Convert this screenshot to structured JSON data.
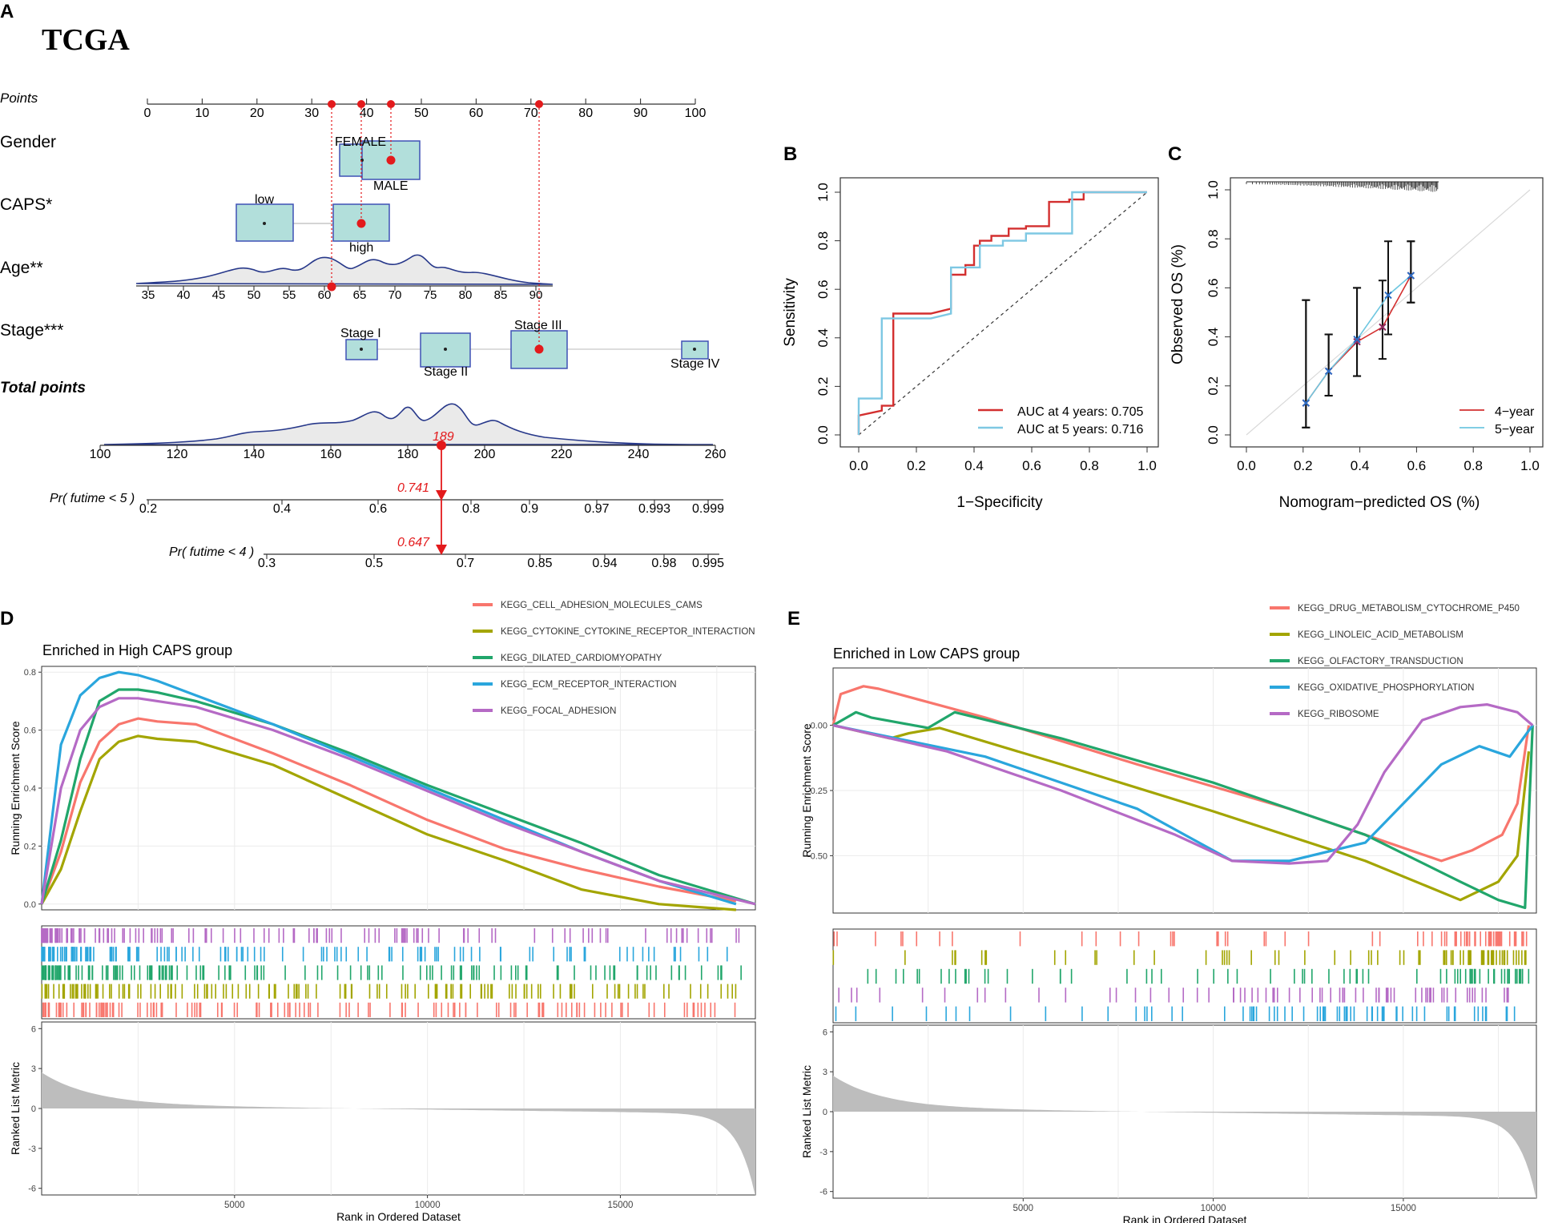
{
  "panels": {
    "A": "A",
    "B": "B",
    "C": "C",
    "D": "D",
    "E": "E"
  },
  "colors": {
    "red": "#e31a1c",
    "teal_box": "#b2dfdb",
    "box_border": "#3f51b5",
    "navy": "#27388a",
    "roc_red": "#d32f2f",
    "roc_blue": "#7ec8e3",
    "cal_red": "#d32f2f",
    "cal_blue": "#6fc7e0",
    "gsea": [
      "#f8766d",
      "#a3a500",
      "#21a66b",
      "#2aa6dd",
      "#b56ac5"
    ]
  },
  "nomogram": {
    "title": "TCGA",
    "points_label": "Points",
    "points_ticks": [
      "0",
      "10",
      "20",
      "30",
      "40",
      "50",
      "60",
      "70",
      "80",
      "90",
      "100"
    ],
    "gender": {
      "label": "Gender",
      "levels": [
        "FEMALE",
        "MALE"
      ]
    },
    "caps": {
      "label": "CAPS*",
      "levels": [
        "low",
        "high"
      ]
    },
    "age": {
      "label": "Age**",
      "ticks": [
        "35",
        "40",
        "45",
        "50",
        "55",
        "60",
        "65",
        "70",
        "75",
        "80",
        "85",
        "90"
      ]
    },
    "stage": {
      "label": "Stage***",
      "levels": [
        "Stage I",
        "Stage II",
        "Stage III",
        "Stage IV"
      ]
    },
    "total": {
      "label": "Total points",
      "ticks": [
        "100",
        "120",
        "140",
        "160",
        "180",
        "200",
        "220",
        "240",
        "260"
      ],
      "marker": "189"
    },
    "pr5": {
      "label": "Pr( futime < 5 )",
      "ticks": [
        "0.2",
        "0.4",
        "0.6",
        "0.8",
        "0.9",
        "0.97",
        "0.993",
        "0.999"
      ],
      "value": "0.741"
    },
    "pr4": {
      "label": "Pr( futime < 4 )",
      "ticks": [
        "0.3",
        "0.5",
        "0.7",
        "0.85",
        "0.94",
        "0.98",
        "0.995"
      ],
      "value": "0.647"
    }
  },
  "chart_data": [
    {
      "id": "B",
      "type": "line",
      "title": "",
      "xlabel": "1−Specificity",
      "ylabel": "Sensitivity",
      "xlim": [
        0,
        1
      ],
      "ylim": [
        0,
        1
      ],
      "xticks": [
        "0.0",
        "0.2",
        "0.4",
        "0.6",
        "0.8",
        "1.0"
      ],
      "yticks": [
        "0.0",
        "0.2",
        "0.4",
        "0.6",
        "0.8",
        "1.0"
      ],
      "legend": [
        "AUC at 4 years: 0.705",
        "AUC at 5 years: 0.716"
      ],
      "series": [
        {
          "name": "AUC at 4 years: 0.705",
          "x": [
            0,
            0,
            0.08,
            0.08,
            0.12,
            0.12,
            0.25,
            0.25,
            0.32,
            0.32,
            0.37,
            0.37,
            0.4,
            0.4,
            0.42,
            0.42,
            0.46,
            0.46,
            0.52,
            0.52,
            0.58,
            0.58,
            0.66,
            0.66,
            0.73,
            0.73,
            0.78,
            0.78,
            1
          ],
          "y": [
            0,
            0.08,
            0.1,
            0.12,
            0.12,
            0.5,
            0.5,
            0.5,
            0.52,
            0.66,
            0.66,
            0.7,
            0.7,
            0.78,
            0.78,
            0.8,
            0.8,
            0.82,
            0.82,
            0.85,
            0.85,
            0.86,
            0.86,
            0.96,
            0.96,
            0.97,
            0.97,
            1,
            1
          ]
        },
        {
          "name": "AUC at 5 years: 0.716",
          "x": [
            0,
            0,
            0.08,
            0.08,
            0.25,
            0.25,
            0.32,
            0.32,
            0.42,
            0.42,
            0.5,
            0.5,
            0.58,
            0.58,
            0.74,
            0.74,
            1
          ],
          "y": [
            0,
            0.15,
            0.15,
            0.48,
            0.48,
            0.48,
            0.5,
            0.69,
            0.69,
            0.78,
            0.78,
            0.8,
            0.8,
            0.83,
            0.83,
            1,
            1
          ]
        }
      ]
    },
    {
      "id": "C",
      "type": "line",
      "title": "",
      "xlabel": "Nomogram−predicted OS (%)",
      "ylabel": "Observed OS (%)",
      "xlim": [
        0,
        1
      ],
      "ylim": [
        0,
        1
      ],
      "xticks": [
        "0.0",
        "0.2",
        "0.4",
        "0.6",
        "0.8",
        "1.0"
      ],
      "yticks": [
        "0.0",
        "0.2",
        "0.4",
        "0.6",
        "0.8",
        "1.0"
      ],
      "legend": [
        "4−year",
        "5−year"
      ],
      "series": [
        {
          "name": "4−year",
          "x": [
            0.21,
            0.29,
            0.39,
            0.48,
            0.58
          ],
          "y": [
            0.13,
            0.26,
            0.38,
            0.44,
            0.65
          ],
          "ci": [
            [
              0.03,
              0.55
            ],
            [
              0.16,
              0.41
            ],
            [
              0.24,
              0.6
            ],
            [
              0.31,
              0.63
            ],
            [
              0.54,
              0.79
            ]
          ]
        },
        {
          "name": "5−year",
          "x": [
            0.21,
            0.29,
            0.39,
            0.5,
            0.58
          ],
          "y": [
            0.13,
            0.26,
            0.39,
            0.57,
            0.65
          ],
          "ci": [
            [
              0.03,
              0.55
            ],
            [
              0.16,
              0.41
            ],
            [
              0.24,
              0.6
            ],
            [
              0.41,
              0.79
            ],
            [
              0.54,
              0.79
            ]
          ]
        }
      ]
    },
    {
      "id": "D",
      "type": "line",
      "title": "Enriched in High CAPS group",
      "xlabel": "Rank in Ordered Dataset",
      "ylabel": "Running Enrichment Score",
      "ylabel2": "Ranked List Metric",
      "xlim": [
        0,
        18500
      ],
      "ylim": [
        -0.02,
        0.82
      ],
      "ylim2": [
        -6.5,
        6.5
      ],
      "xticks": [
        "5000",
        "10000",
        "15000"
      ],
      "yticks": [
        "0.0",
        "0.2",
        "0.4",
        "0.6",
        "0.8"
      ],
      "yticks2": [
        "-6",
        "-3",
        "0",
        "3",
        "6"
      ],
      "series": [
        {
          "name": "KEGG_CELL_ADHESION_MOLECULES_CAMS",
          "x": [
            0,
            500,
            1000,
            1500,
            2000,
            2500,
            3000,
            4000,
            6000,
            8000,
            10000,
            12000,
            14000,
            16000,
            18000
          ],
          "y": [
            0,
            0.18,
            0.42,
            0.56,
            0.62,
            0.64,
            0.63,
            0.62,
            0.52,
            0.41,
            0.29,
            0.19,
            0.12,
            0.06,
            0.01
          ]
        },
        {
          "name": "KEGG_CYTOKINE_CYTOKINE_RECEPTOR_INTERACTION",
          "x": [
            0,
            500,
            1000,
            1500,
            2000,
            2500,
            3000,
            4000,
            6000,
            8000,
            10000,
            12000,
            14000,
            16000,
            18000
          ],
          "y": [
            0,
            0.12,
            0.32,
            0.5,
            0.56,
            0.58,
            0.57,
            0.56,
            0.48,
            0.36,
            0.24,
            0.15,
            0.05,
            0.0,
            -0.02
          ]
        },
        {
          "name": "KEGG_DILATED_CARDIOMYOPATHY",
          "x": [
            0,
            500,
            1000,
            1500,
            2000,
            2500,
            3000,
            4000,
            6000,
            8000,
            10000,
            12000,
            14000,
            16000,
            18500
          ],
          "y": [
            0,
            0.22,
            0.5,
            0.7,
            0.74,
            0.74,
            0.73,
            0.7,
            0.62,
            0.52,
            0.41,
            0.31,
            0.21,
            0.1,
            0.0
          ]
        },
        {
          "name": "KEGG_ECM_RECEPTOR_INTERACTION",
          "x": [
            0,
            500,
            1000,
            1500,
            2000,
            2500,
            3000,
            4000,
            6000,
            8000,
            10000,
            12000,
            14000,
            16000,
            18000
          ],
          "y": [
            0,
            0.55,
            0.72,
            0.78,
            0.8,
            0.79,
            0.77,
            0.72,
            0.62,
            0.51,
            0.4,
            0.29,
            0.18,
            0.08,
            0.0
          ]
        },
        {
          "name": "KEGG_FOCAL_ADHESION",
          "x": [
            0,
            500,
            1000,
            1500,
            2000,
            2500,
            3000,
            4000,
            6000,
            8000,
            10000,
            12000,
            14000,
            16000,
            18500
          ],
          "y": [
            0,
            0.4,
            0.6,
            0.68,
            0.71,
            0.71,
            0.7,
            0.68,
            0.6,
            0.5,
            0.39,
            0.28,
            0.18,
            0.08,
            0.0
          ]
        }
      ]
    },
    {
      "id": "E",
      "type": "line",
      "title": "Enriched in Low CAPS group",
      "xlabel": "Rank in Ordered Dataset",
      "ylabel": "Running Enrichment Score",
      "ylabel2": "Ranked List Metric",
      "xlim": [
        0,
        18500
      ],
      "ylim": [
        -0.72,
        0.22
      ],
      "ylim2": [
        -6.5,
        6.5
      ],
      "xticks": [
        "5000",
        "10000",
        "15000"
      ],
      "yticks": [
        "0.00",
        "-0.25",
        "-0.50"
      ],
      "yticks2": [
        "-6",
        "-3",
        "0",
        "3",
        "6"
      ],
      "series": [
        {
          "name": "KEGG_DRUG_METABOLISM_CYTOCHROME_P450",
          "x": [
            0,
            200,
            800,
            1200,
            4000,
            8000,
            12000,
            14000,
            16000,
            16800,
            17600,
            18000,
            18300
          ],
          "y": [
            0,
            0.12,
            0.15,
            0.14,
            0.03,
            -0.15,
            -0.32,
            -0.42,
            -0.52,
            -0.48,
            -0.42,
            -0.3,
            0.0
          ]
        },
        {
          "name": "KEGG_LINOLEIC_ACID_METABOLISM",
          "x": [
            0,
            1500,
            2000,
            2800,
            6000,
            10000,
            14000,
            16500,
            17500,
            18000,
            18300
          ],
          "y": [
            0,
            -0.05,
            -0.03,
            -0.01,
            -0.15,
            -0.33,
            -0.52,
            -0.67,
            -0.6,
            -0.5,
            -0.1
          ]
        },
        {
          "name": "KEGG_OLFACTORY_TRANSDUCTION",
          "x": [
            0,
            600,
            1000,
            2500,
            3200,
            6000,
            10000,
            14000,
            16500,
            17500,
            18200,
            18400
          ],
          "y": [
            0,
            0.05,
            0.03,
            -0.01,
            0.05,
            -0.05,
            -0.22,
            -0.42,
            -0.6,
            -0.67,
            -0.7,
            0.0
          ]
        },
        {
          "name": "KEGG_OXIDATIVE_PHOSPHORYLATION",
          "x": [
            0,
            1000,
            4000,
            8000,
            10500,
            12000,
            14000,
            15000,
            16000,
            17000,
            17800,
            18400
          ],
          "y": [
            0,
            -0.03,
            -0.12,
            -0.32,
            -0.52,
            -0.52,
            -0.45,
            -0.3,
            -0.15,
            -0.08,
            -0.12,
            0.0
          ]
        },
        {
          "name": "KEGG_RIBOSOME",
          "x": [
            0,
            3000,
            6000,
            9000,
            10500,
            12000,
            13000,
            13800,
            14500,
            15500,
            16500,
            17200,
            18000,
            18400
          ],
          "y": [
            0,
            -0.1,
            -0.25,
            -0.42,
            -0.52,
            -0.53,
            -0.52,
            -0.38,
            -0.18,
            0.02,
            0.07,
            0.08,
            0.05,
            0.0
          ]
        }
      ]
    }
  ]
}
